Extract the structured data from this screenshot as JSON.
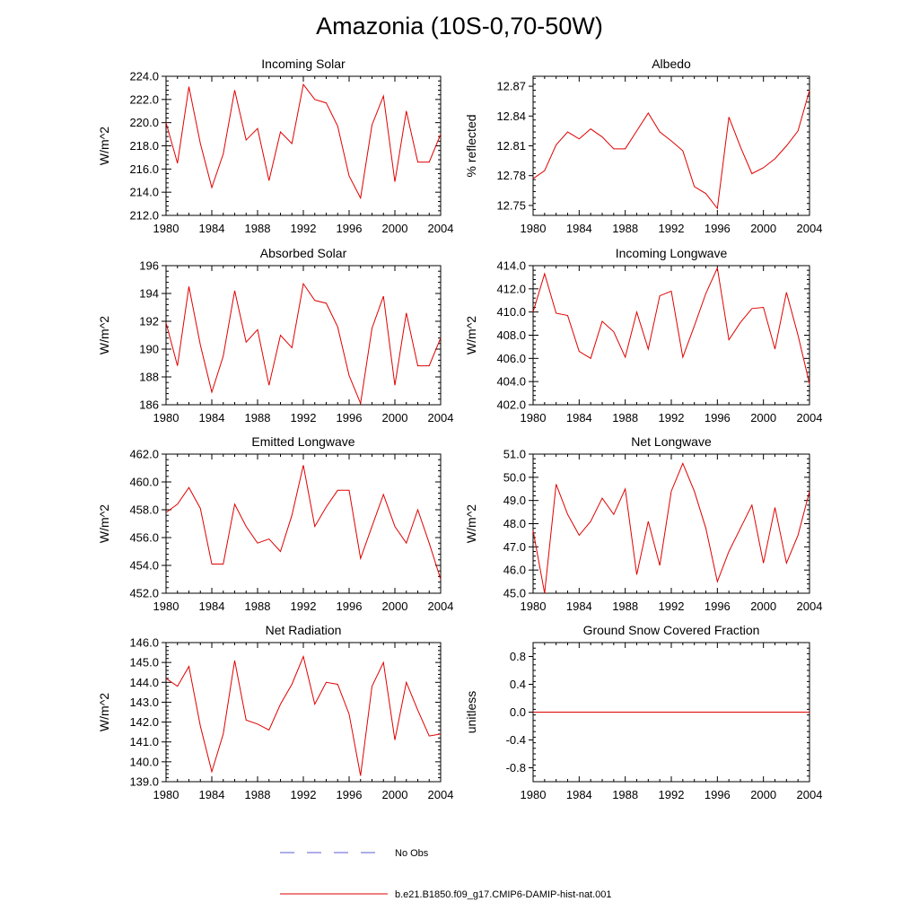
{
  "figure": {
    "title": "Amazonia (10S-0,70-50W)"
  },
  "legend": [
    {
      "label": "No Obs",
      "color": "#5b5bd6",
      "style": "dashed"
    },
    {
      "label": "b.e21.B1850.f09_g17.CMIP6-DAMIP-hist-nat.001",
      "color": "#e00000",
      "style": "solid"
    }
  ],
  "chart_data": [
    {
      "type": "line",
      "title": "Incoming Solar",
      "ylabel": "W/m^2",
      "xlim": [
        1980,
        2004
      ],
      "ylim": [
        212,
        224
      ],
      "xticks": [
        1980,
        1984,
        1988,
        1992,
        1996,
        2000,
        2004
      ],
      "yticks": [
        212.0,
        214.0,
        216.0,
        218.0,
        220.0,
        222.0,
        224.0
      ],
      "ytick_labels": [
        "212.0",
        "214.0",
        "216.0",
        "218.0",
        "220.0",
        "222.0",
        "224.0"
      ],
      "x": [
        1980,
        1981,
        1982,
        1983,
        1984,
        1985,
        1986,
        1987,
        1988,
        1989,
        1990,
        1991,
        1992,
        1993,
        1994,
        1995,
        1996,
        1997,
        1998,
        1999,
        2000,
        2001,
        2002,
        2003,
        2004
      ],
      "series": [
        {
          "name": "b.e21.B1850.f09_g17.CMIP6-DAMIP-hist-nat.001",
          "color": "#e00000",
          "values": [
            220.0,
            216.5,
            223.1,
            218.2,
            214.4,
            217.3,
            222.8,
            218.5,
            219.5,
            215.0,
            219.2,
            218.2,
            223.3,
            222.0,
            221.7,
            219.7,
            215.4,
            213.5,
            219.8,
            222.3,
            214.9,
            221.0,
            216.6,
            216.6,
            219.0
          ]
        }
      ]
    },
    {
      "type": "line",
      "title": "Albedo",
      "ylabel": "% reflected",
      "xlim": [
        1980,
        2004
      ],
      "ylim": [
        12.74,
        12.88
      ],
      "xticks": [
        1980,
        1984,
        1988,
        1992,
        1996,
        2000,
        2004
      ],
      "yticks": [
        12.75,
        12.78,
        12.81,
        12.84,
        12.87
      ],
      "ytick_labels": [
        "12.75",
        "12.78",
        "12.81",
        "12.84",
        "12.87"
      ],
      "x": [
        1980,
        1981,
        1982,
        1983,
        1984,
        1985,
        1986,
        1987,
        1988,
        1989,
        1990,
        1991,
        1992,
        1993,
        1994,
        1995,
        1996,
        1997,
        1998,
        1999,
        2000,
        2001,
        2002,
        2003,
        2004
      ],
      "series": [
        {
          "name": "b.e21.B1850.f09_g17.CMIP6-DAMIP-hist-nat.001",
          "color": "#e00000",
          "values": [
            12.777,
            12.785,
            12.811,
            12.824,
            12.817,
            12.827,
            12.819,
            12.807,
            12.807,
            12.825,
            12.843,
            12.824,
            12.815,
            12.805,
            12.769,
            12.762,
            12.747,
            12.839,
            12.809,
            12.782,
            12.788,
            12.797,
            12.81,
            12.825,
            12.866
          ]
        }
      ]
    },
    {
      "type": "line",
      "title": "Absorbed Solar",
      "ylabel": "W/m^2",
      "xlim": [
        1980,
        2004
      ],
      "ylim": [
        186,
        196
      ],
      "xticks": [
        1980,
        1984,
        1988,
        1992,
        1996,
        2000,
        2004
      ],
      "yticks": [
        186,
        188,
        190,
        192,
        194,
        196
      ],
      "ytick_labels": [
        "186",
        "188",
        "190",
        "192",
        "194",
        "196"
      ],
      "x": [
        1980,
        1981,
        1982,
        1983,
        1984,
        1985,
        1986,
        1987,
        1988,
        1989,
        1990,
        1991,
        1992,
        1993,
        1994,
        1995,
        1996,
        1997,
        1998,
        1999,
        2000,
        2001,
        2002,
        2003,
        2004
      ],
      "series": [
        {
          "name": "b.e21.B1850.f09_g17.CMIP6-DAMIP-hist-nat.001",
          "color": "#e00000",
          "values": [
            191.9,
            188.8,
            194.5,
            190.3,
            186.9,
            189.5,
            194.2,
            190.5,
            191.4,
            187.4,
            191.0,
            190.1,
            194.7,
            193.5,
            193.3,
            191.6,
            188.1,
            186.1,
            191.5,
            193.8,
            187.4,
            192.6,
            188.8,
            188.8,
            190.8
          ]
        }
      ]
    },
    {
      "type": "line",
      "title": "Incoming Longwave",
      "ylabel": "W/m^2",
      "xlim": [
        1980,
        2004
      ],
      "ylim": [
        402,
        414
      ],
      "xticks": [
        1980,
        1984,
        1988,
        1992,
        1996,
        2000,
        2004
      ],
      "yticks": [
        402.0,
        404.0,
        406.0,
        408.0,
        410.0,
        412.0,
        414.0
      ],
      "ytick_labels": [
        "402.0",
        "404.0",
        "406.0",
        "408.0",
        "410.0",
        "412.0",
        "414.0"
      ],
      "x": [
        1980,
        1981,
        1982,
        1983,
        1984,
        1985,
        1986,
        1987,
        1988,
        1989,
        1990,
        1991,
        1992,
        1993,
        1994,
        1995,
        1996,
        1997,
        1998,
        1999,
        2000,
        2001,
        2002,
        2003,
        2004
      ],
      "series": [
        {
          "name": "b.e21.B1850.f09_g17.CMIP6-DAMIP-hist-nat.001",
          "color": "#e00000",
          "values": [
            410.0,
            413.3,
            409.9,
            409.7,
            406.6,
            406.0,
            409.2,
            408.3,
            406.1,
            410.0,
            406.8,
            411.4,
            411.8,
            406.1,
            408.8,
            411.6,
            413.8,
            407.6,
            409.1,
            410.3,
            410.4,
            406.8,
            411.7,
            408.0,
            403.8
          ]
        }
      ]
    },
    {
      "type": "line",
      "title": "Emitted Longwave",
      "ylabel": "W/m^2",
      "xlim": [
        1980,
        2004
      ],
      "ylim": [
        452,
        462
      ],
      "xticks": [
        1980,
        1984,
        1988,
        1992,
        1996,
        2000,
        2004
      ],
      "yticks": [
        452.0,
        454.0,
        456.0,
        458.0,
        460.0,
        462.0
      ],
      "ytick_labels": [
        "452.0",
        "454.0",
        "456.0",
        "458.0",
        "460.0",
        "462.0"
      ],
      "x": [
        1980,
        1981,
        1982,
        1983,
        1984,
        1985,
        1986,
        1987,
        1988,
        1989,
        1990,
        1991,
        1992,
        1993,
        1994,
        1995,
        1996,
        1997,
        1998,
        1999,
        2000,
        2001,
        2002,
        2003,
        2004
      ],
      "series": [
        {
          "name": "b.e21.B1850.f09_g17.CMIP6-DAMIP-hist-nat.001",
          "color": "#e00000",
          "values": [
            457.8,
            458.4,
            459.6,
            458.1,
            454.1,
            454.1,
            458.4,
            456.8,
            455.6,
            455.9,
            455.0,
            457.6,
            461.2,
            456.8,
            458.2,
            459.4,
            459.4,
            454.5,
            456.8,
            459.1,
            456.8,
            455.6,
            458.0,
            455.6,
            453.0
          ]
        }
      ]
    },
    {
      "type": "line",
      "title": "Net Longwave",
      "ylabel": "W/m^2",
      "xlim": [
        1980,
        2004
      ],
      "ylim": [
        45,
        51
      ],
      "xticks": [
        1980,
        1984,
        1988,
        1992,
        1996,
        2000,
        2004
      ],
      "yticks": [
        45.0,
        46.0,
        47.0,
        48.0,
        49.0,
        50.0,
        51.0
      ],
      "ytick_labels": [
        "45.0",
        "46.0",
        "47.0",
        "48.0",
        "49.0",
        "50.0",
        "51.0"
      ],
      "x": [
        1980,
        1981,
        1982,
        1983,
        1984,
        1985,
        1986,
        1987,
        1988,
        1989,
        1990,
        1991,
        1992,
        1993,
        1994,
        1995,
        1996,
        1997,
        1998,
        1999,
        2000,
        2001,
        2002,
        2003,
        2004
      ],
      "series": [
        {
          "name": "b.e21.B1850.f09_g17.CMIP6-DAMIP-hist-nat.001",
          "color": "#e00000",
          "values": [
            47.7,
            45.0,
            49.7,
            48.4,
            47.5,
            48.1,
            49.1,
            48.4,
            49.5,
            45.8,
            48.1,
            46.2,
            49.4,
            50.6,
            49.4,
            47.8,
            45.5,
            46.8,
            47.8,
            48.8,
            46.3,
            48.7,
            46.3,
            47.5,
            49.4
          ]
        }
      ]
    },
    {
      "type": "line",
      "title": "Net Radiation",
      "ylabel": "W/m^2",
      "xlim": [
        1980,
        2004
      ],
      "ylim": [
        139,
        146
      ],
      "xticks": [
        1980,
        1984,
        1988,
        1992,
        1996,
        2000,
        2004
      ],
      "yticks": [
        139.0,
        140.0,
        141.0,
        142.0,
        143.0,
        144.0,
        145.0,
        146.0
      ],
      "ytick_labels": [
        "139.0",
        "140.0",
        "141.0",
        "142.0",
        "143.0",
        "144.0",
        "145.0",
        "146.0"
      ],
      "x": [
        1980,
        1981,
        1982,
        1983,
        1984,
        1985,
        1986,
        1987,
        1988,
        1989,
        1990,
        1991,
        1992,
        1993,
        1994,
        1995,
        1996,
        1997,
        1998,
        1999,
        2000,
        2001,
        2002,
        2003,
        2004
      ],
      "series": [
        {
          "name": "b.e21.B1850.f09_g17.CMIP6-DAMIP-hist-nat.001",
          "color": "#e00000",
          "values": [
            144.2,
            143.8,
            144.8,
            141.8,
            139.5,
            141.4,
            145.1,
            142.1,
            141.9,
            141.6,
            142.9,
            143.9,
            145.3,
            142.9,
            144.0,
            143.9,
            142.4,
            139.3,
            143.8,
            145.0,
            141.1,
            144.0,
            142.6,
            141.3,
            141.4
          ]
        }
      ]
    },
    {
      "type": "line",
      "title": "Ground Snow Covered Fraction",
      "ylabel": "unitless",
      "xlim": [
        1980,
        2004
      ],
      "ylim": [
        -1,
        1
      ],
      "xticks": [
        1980,
        1984,
        1988,
        1992,
        1996,
        2000,
        2004
      ],
      "yticks": [
        -0.8,
        -0.4,
        0.0,
        0.4,
        0.8
      ],
      "ytick_labels": [
        "-0.8",
        "-0.4",
        "0.0",
        "0.4",
        "0.8"
      ],
      "x": [
        1980,
        1981,
        1982,
        1983,
        1984,
        1985,
        1986,
        1987,
        1988,
        1989,
        1990,
        1991,
        1992,
        1993,
        1994,
        1995,
        1996,
        1997,
        1998,
        1999,
        2000,
        2001,
        2002,
        2003,
        2004
      ],
      "series": [
        {
          "name": "b.e21.B1850.f09_g17.CMIP6-DAMIP-hist-nat.001",
          "color": "#e00000",
          "values": [
            0,
            0,
            0,
            0,
            0,
            0,
            0,
            0,
            0,
            0,
            0,
            0,
            0,
            0,
            0,
            0,
            0,
            0,
            0,
            0,
            0,
            0,
            0,
            0,
            0
          ]
        }
      ]
    }
  ]
}
